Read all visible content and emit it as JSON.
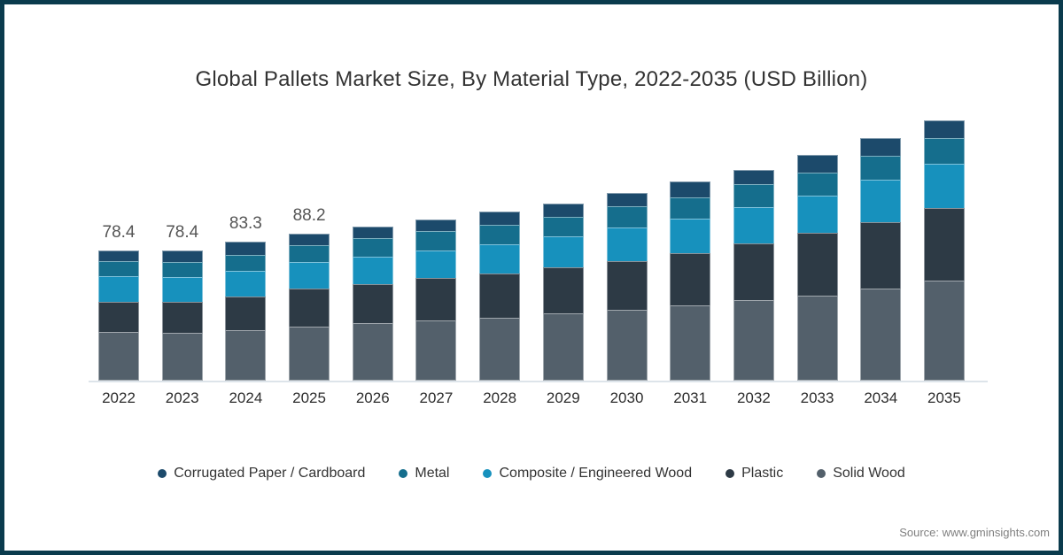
{
  "chart_data": {
    "type": "bar",
    "stacked": true,
    "title": "Global Pallets Market Size, By Material Type, 2022-2035 (USD Billion)",
    "unit": "USD Billion",
    "categories": [
      "2022",
      "2023",
      "2024",
      "2025",
      "2026",
      "2027",
      "2028",
      "2029",
      "2030",
      "2031",
      "2032",
      "2033",
      "2034",
      "2035"
    ],
    "series": [
      {
        "name": "Solid Wood",
        "color": "#53606b",
        "values": [
          28.3,
          28.0,
          29.8,
          31.6,
          33.6,
          35.5,
          37.0,
          39.5,
          41.4,
          44.0,
          47.0,
          50.0,
          53.9,
          58.5
        ]
      },
      {
        "name": "Plastic",
        "color": "#2d3a45",
        "values": [
          18.1,
          18.9,
          20.1,
          22.8,
          23.3,
          25.1,
          26.4,
          27.2,
          29.1,
          31.1,
          33.9,
          37.0,
          39.5,
          43.2
        ]
      },
      {
        "name": "Composite / Engineered Wood",
        "color": "#1791bd",
        "values": [
          15.7,
          14.8,
          15.5,
          16.0,
          16.5,
          16.5,
          17.7,
          18.6,
          20.0,
          20.9,
          21.8,
          22.3,
          25.4,
          26.1
        ]
      },
      {
        "name": "Metal",
        "color": "#156e8d",
        "values": [
          9.3,
          9.2,
          9.6,
          10.3,
          11.5,
          12.0,
          11.9,
          12.2,
          13.0,
          12.7,
          13.9,
          13.9,
          14.3,
          15.7
        ]
      },
      {
        "name": "Corrugated Paper / Cardboard",
        "color": "#1c4a6b",
        "values": [
          7.0,
          7.5,
          8.3,
          7.5,
          7.6,
          7.5,
          7.9,
          8.3,
          8.7,
          9.9,
          9.0,
          10.8,
          10.8,
          11.0
        ]
      }
    ],
    "stacking_order_note": "series listed bottom-to-top",
    "totals": [
      78.4,
      78.4,
      83.3,
      88.2,
      92.5,
      96.6,
      100.9,
      105.8,
      112.2,
      118.6,
      125.6,
      134.0,
      143.9,
      154.5
    ],
    "total_labels": [
      "78.4",
      "78.4",
      "83.3",
      "88.2",
      "",
      "",
      "",
      "",
      "",
      "",
      "",
      "",
      "",
      ""
    ],
    "legend_items": [
      {
        "label": "Corrugated Paper / Cardboard",
        "color": "#1c4a6b"
      },
      {
        "label": "Metal",
        "color": "#156e8d"
      },
      {
        "label": "Composite / Engineered Wood",
        "color": "#1791bd"
      },
      {
        "label": "Plastic",
        "color": "#2d3a45"
      },
      {
        "label": "Solid Wood",
        "color": "#53606b"
      }
    ],
    "legend_position": "bottom",
    "y_axis": "hidden",
    "gridlines": false
  },
  "source": "Source: www.gminsights.com",
  "frame_color": "#0a3b4d",
  "axis_line_color": "#dde4ea"
}
